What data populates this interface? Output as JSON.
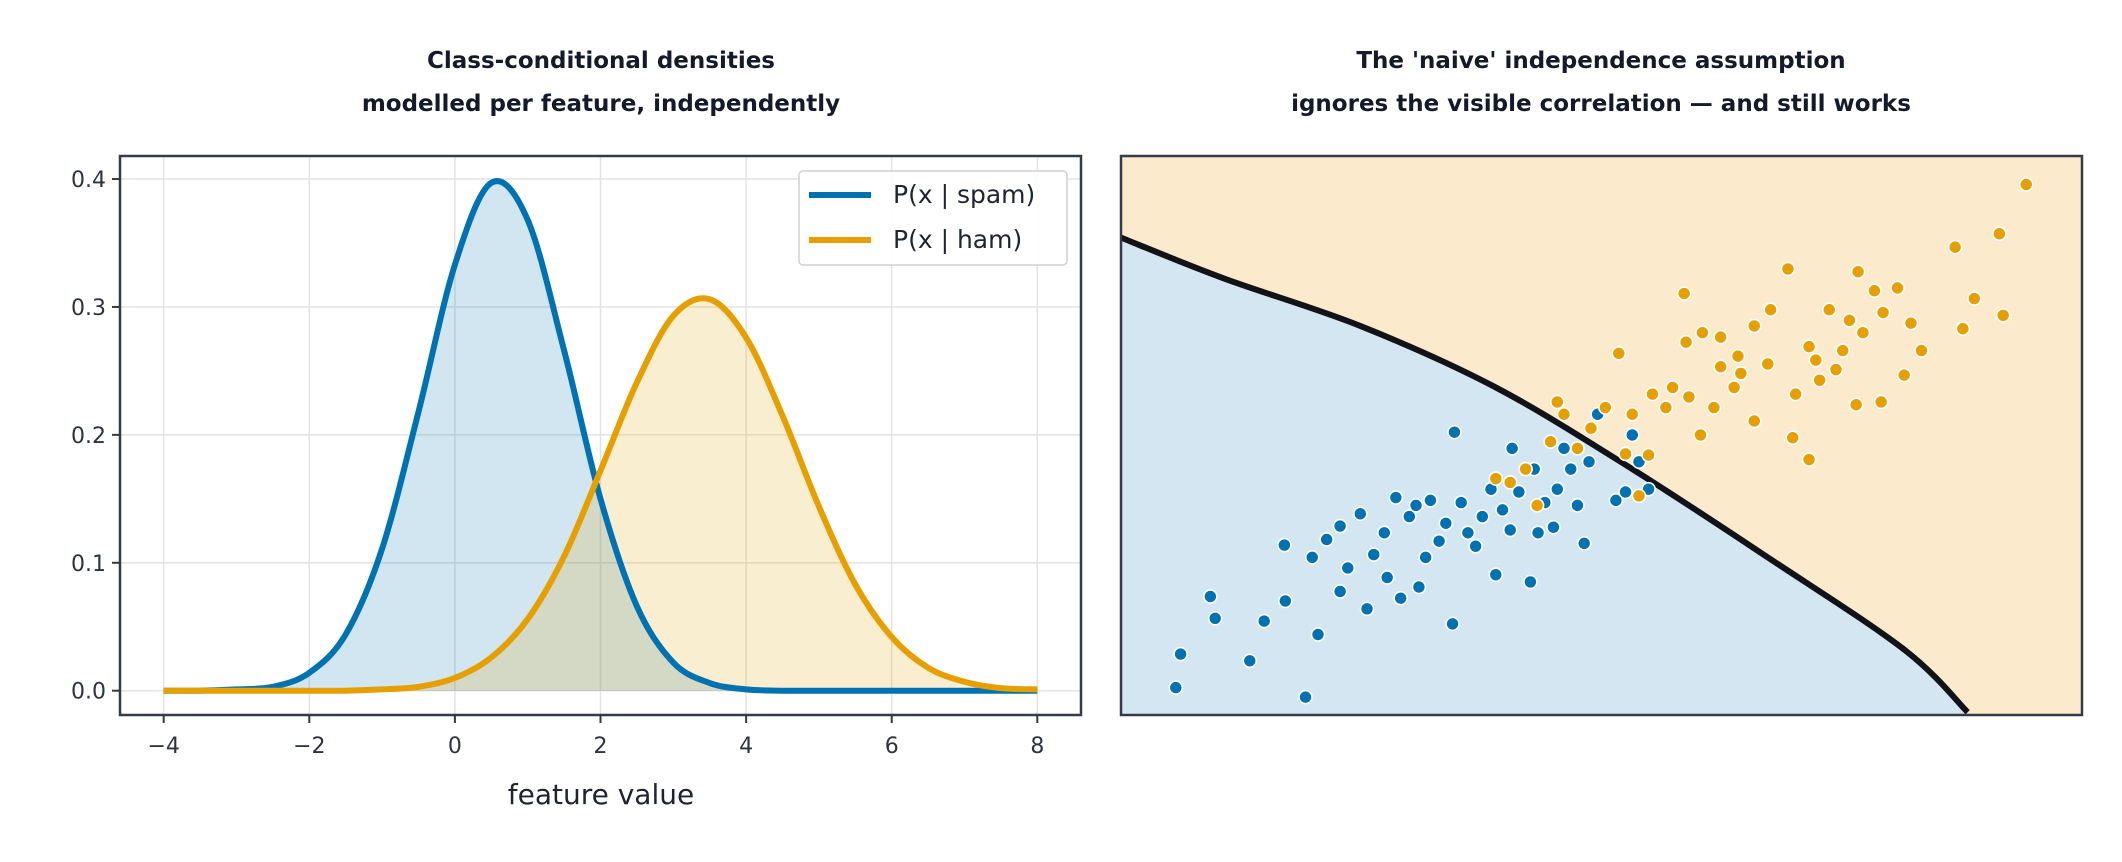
{
  "chart_data": [
    {
      "type": "line",
      "title": [
        "Class-conditional densities",
        "modelled per feature, independently"
      ],
      "xlabel": "feature value",
      "x": [
        -4,
        -3.5,
        -3,
        -2.5,
        -2,
        -1.5,
        -1,
        -0.5,
        0,
        0.5,
        1,
        1.5,
        2,
        2.5,
        3,
        3.5,
        4,
        4.5,
        5,
        5.5,
        6,
        6.5,
        7,
        7.5,
        8
      ],
      "series": [
        {
          "name": "P(x | spam)",
          "color": "#0072b2",
          "values": [
            0.0,
            0.0,
            0.001,
            0.003,
            0.014,
            0.044,
            0.111,
            0.218,
            0.333,
            0.397,
            0.368,
            0.266,
            0.15,
            0.066,
            0.022,
            0.006,
            0.001,
            0.0,
            0.0,
            0.0,
            0.0,
            0.0,
            0.0,
            0.0,
            0.0
          ]
        },
        {
          "name": "P(x | ham)",
          "color": "#e69f00",
          "values": [
            0.0,
            0.0,
            0.0,
            0.0,
            0.0,
            0.0,
            0.001,
            0.003,
            0.01,
            0.026,
            0.056,
            0.105,
            0.172,
            0.241,
            0.293,
            0.306,
            0.276,
            0.215,
            0.144,
            0.083,
            0.042,
            0.018,
            0.007,
            0.002,
            0.001
          ]
        }
      ],
      "xlim": [
        -4.6,
        8.6
      ],
      "ylim": [
        -0.019,
        0.418
      ],
      "xticks": [
        {
          "value": -4,
          "label": "−4"
        },
        {
          "value": -2,
          "label": "−2"
        },
        0,
        2,
        4,
        6,
        8
      ],
      "yticks": [
        {
          "value": 0,
          "label": "0.0"
        },
        0.1,
        0.2,
        0.3,
        0.4
      ],
      "grid": true,
      "fill": true,
      "legend": "upper right"
    },
    {
      "type": "scatter",
      "title": [
        "The 'naive' independence assumption",
        "ignores the visible correlation — and still works"
      ],
      "xlim": [
        0,
        100
      ],
      "ylim": [
        0,
        100
      ],
      "region_colors": [
        "#d5e6f3",
        "#fbeacb"
      ],
      "boundary": {
        "color": "#111318",
        "x": [
          0,
          10.7,
          24.9,
          39.0,
          53.2,
          67.3,
          81.5,
          88.1
        ],
        "y": [
          85.4,
          78.1,
          69.6,
          58.6,
          44.0,
          28.2,
          11.7,
          0.5
        ]
      },
      "series": [
        {
          "color": "#0072b2",
          "x": [
            5.7,
            6.2,
            9.3,
            9.8,
            13.4,
            14.9,
            17.0,
            17.1,
            19.2,
            20.5,
            19.9,
            21.4,
            22.8,
            22.8,
            23.6,
            24.9,
            25.6,
            26.3,
            27.4,
            27.7,
            28.6,
            29.1,
            30.0,
            30.7,
            31.0,
            31.7,
            32.2,
            33.1,
            33.8,
            34.5,
            34.7,
            35.4,
            36.1,
            36.9,
            37.6,
            38.5,
            39.0,
            39.7,
            40.5,
            40.7,
            41.4,
            42.6,
            43.0,
            43.4,
            44.1,
            45.0,
            45.4,
            46.1,
            46.8,
            47.5,
            48.2,
            48.7,
            49.6,
            51.5,
            53.2,
            53.9,
            54.9,
            52.5
          ],
          "values": [
            4.9,
            10.9,
            21.2,
            17.3,
            9.7,
            16.8,
            30.4,
            20.4,
            3.2,
            14.4,
            28.2,
            31.4,
            33.8,
            22.1,
            26.3,
            36.0,
            19.0,
            28.7,
            32.6,
            24.6,
            38.9,
            20.9,
            35.5,
            37.5,
            22.9,
            28.2,
            38.4,
            31.1,
            34.3,
            16.3,
            50.6,
            38.0,
            32.6,
            30.2,
            35.5,
            40.4,
            25.1,
            36.7,
            33.1,
            47.7,
            39.9,
            23.8,
            44.0,
            32.6,
            38.0,
            33.6,
            40.4,
            47.7,
            44.0,
            37.5,
            30.7,
            45.3,
            53.8,
            38.4,
            50.1,
            45.3,
            40.4,
            39.9
          ]
        },
        {
          "color": "#e69f00",
          "x": [
            94.2,
            91.4,
            86.8,
            88.8,
            87.6,
            91.8,
            83.3,
            81.5,
            79.1,
            80.8,
            76.7,
            78.4,
            75.8,
            73.7,
            71.6,
            69.4,
            67.6,
            65.9,
            64.2,
            62.4,
            60.5,
            58.8,
            57.4,
            58.6,
            56.7,
            55.3,
            53.2,
            51.8,
            50.4,
            48.9,
            47.5,
            46.1,
            45.4,
            44.7,
            43.3,
            42.1,
            40.5,
            39.0,
            54.9,
            53.9,
            52.5,
            61.7,
            63.8,
            65.9,
            69.9,
            71.6,
            72.7,
            74.4,
            77.2,
            79.3,
            82.2,
            60.3,
            59.1,
            62.4,
            64.5,
            67.3,
            70.2,
            72.3,
            75.1,
            76.5
          ],
          "values": [
            94.9,
            86.1,
            83.7,
            74.5,
            69.1,
            71.5,
            65.2,
            60.8,
            56.0,
            76.4,
            79.3,
            75.9,
            70.6,
            72.5,
            65.9,
            79.8,
            72.5,
            69.6,
            64.2,
            62.3,
            68.4,
            66.7,
            58.6,
            75.4,
            55.0,
            57.4,
            53.8,
            64.7,
            55.0,
            51.3,
            47.7,
            53.8,
            56.0,
            48.9,
            37.5,
            44.0,
            41.6,
            42.3,
            46.5,
            39.2,
            46.7,
            55.0,
            58.6,
            52.6,
            49.6,
            45.7,
            59.9,
            61.8,
            68.4,
            72.0,
            70.1,
            50.1,
            56.9,
            67.6,
            61.1,
            62.8,
            57.4,
            63.5,
            65.2,
            55.5
          ]
        }
      ]
    }
  ]
}
